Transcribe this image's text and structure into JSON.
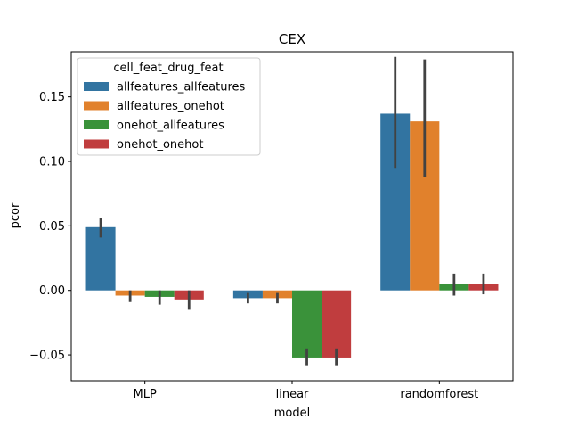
{
  "chart_data": {
    "type": "bar",
    "title": "CEX",
    "xlabel": "model",
    "ylabel": "pcor",
    "categories": [
      "MLP",
      "linear",
      "randomforest"
    ],
    "ylim": [
      -0.07,
      0.185
    ],
    "yticks": [
      -0.05,
      0.0,
      0.05,
      0.1,
      0.15
    ],
    "ytick_labels": [
      "−0.05",
      "0.00",
      "0.05",
      "0.10",
      "0.15"
    ],
    "grid": false,
    "legend": {
      "title": "cell_feat_drug_feat",
      "placement": "top-left"
    },
    "series": [
      {
        "name": "allfeatures_allfeatures",
        "color": "#3274a1",
        "values": [
          0.049,
          -0.006,
          0.137
        ],
        "ci": [
          [
            0.041,
            0.056
          ],
          [
            -0.01,
            -0.002
          ],
          [
            0.095,
            0.181
          ]
        ]
      },
      {
        "name": "allfeatures_onehot",
        "color": "#e1812c",
        "values": [
          -0.004,
          -0.006,
          0.131
        ],
        "ci": [
          [
            -0.009,
            0.0
          ],
          [
            -0.01,
            -0.002
          ],
          [
            0.088,
            0.179
          ]
        ]
      },
      {
        "name": "onehot_allfeatures",
        "color": "#3a923a",
        "values": [
          -0.005,
          -0.052,
          0.005
        ],
        "ci": [
          [
            -0.011,
            0.0
          ],
          [
            -0.058,
            -0.045
          ],
          [
            -0.004,
            0.013
          ]
        ]
      },
      {
        "name": "onehot_onehot",
        "color": "#c03d3e",
        "values": [
          -0.007,
          -0.052,
          0.005
        ],
        "ci": [
          [
            -0.015,
            0.0
          ],
          [
            -0.058,
            -0.045
          ],
          [
            -0.003,
            0.013
          ]
        ]
      }
    ],
    "errorbar_color": "#424242"
  }
}
